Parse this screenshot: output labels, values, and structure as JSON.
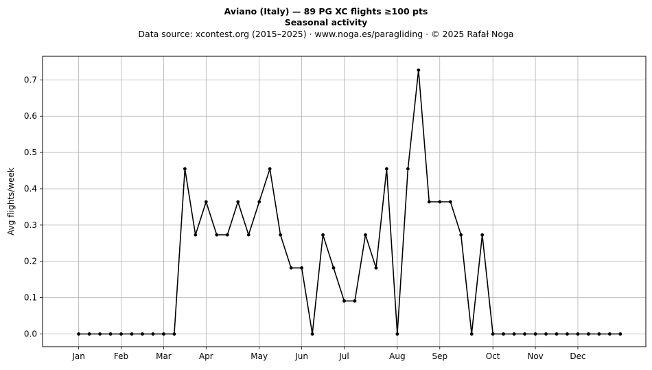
{
  "chart_data": {
    "type": "line",
    "title": "Aviano (Italy)  —  89 PG XC flights ≥100 pts",
    "title2": "Seasonal activity",
    "subtitle": "Data source: xcontest.org (2015–2025)  ·  www.noga.es/paragliding  ·  © 2025 Rafał Noga",
    "ylabel": "Avg flights/week",
    "xlabel": "",
    "ylim": [
      -0.035,
      0.765
    ],
    "xlim": [
      -2.4,
      54.4
    ],
    "yticks": [
      0.0,
      0.1,
      0.2,
      0.3,
      0.4,
      0.5,
      0.6,
      0.7
    ],
    "ytick_labels": [
      "0.0",
      "0.1",
      "0.2",
      "0.3",
      "0.4",
      "0.5",
      "0.6",
      "0.7"
    ],
    "xticks": [
      1,
      5,
      9,
      13,
      18,
      22,
      26,
      31,
      35,
      40,
      44,
      48
    ],
    "xtick_labels": [
      "Jan",
      "Feb",
      "Mar",
      "Apr",
      "May",
      "Jun",
      "Jul",
      "Aug",
      "Sep",
      "Oct",
      "Nov",
      "Dec"
    ],
    "grid": true,
    "line_color": "#000000",
    "x": [
      1,
      2,
      3,
      4,
      5,
      6,
      7,
      8,
      9,
      10,
      11,
      12,
      13,
      14,
      15,
      16,
      17,
      18,
      19,
      20,
      21,
      22,
      23,
      24,
      25,
      26,
      27,
      28,
      29,
      30,
      31,
      32,
      33,
      34,
      35,
      36,
      37,
      38,
      39,
      40,
      41,
      42,
      43,
      44,
      45,
      46,
      47,
      48,
      49,
      50,
      51,
      52
    ],
    "values": [
      0,
      0,
      0,
      0,
      0,
      0,
      0,
      0,
      0,
      0,
      0.455,
      0.273,
      0.364,
      0.273,
      0.273,
      0.364,
      0.273,
      0.364,
      0.455,
      0.273,
      0.182,
      0.182,
      0,
      0.273,
      0.182,
      0.091,
      0.091,
      0.273,
      0.182,
      0.455,
      0,
      0.455,
      0.727,
      0.364,
      0.364,
      0.364,
      0.273,
      0,
      0.273,
      0,
      0,
      0,
      0,
      0,
      0,
      0,
      0,
      0,
      0,
      0,
      0,
      0
    ]
  }
}
